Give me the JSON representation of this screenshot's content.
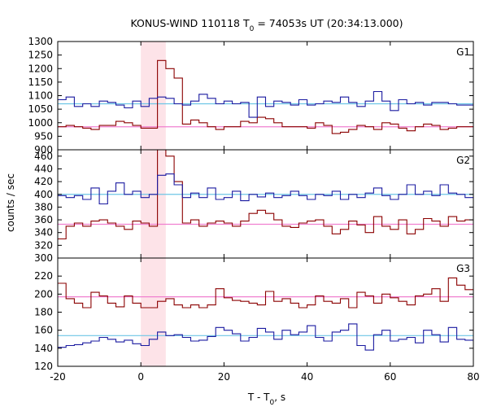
{
  "chart_data": {
    "type": "line",
    "title_parts": {
      "prefix": "KONUS-WIND 110118 T",
      "sub": "0",
      "suffix": " = 74053s UT (20:34:13.000)"
    },
    "xlabel_parts": {
      "prefix": "T - T",
      "sub": "0",
      "suffix": ", s"
    },
    "ylabel": "counts / sec",
    "xlim": [
      -20,
      80
    ],
    "x_ticks": [
      -20,
      0,
      20,
      40,
      60,
      80
    ],
    "highlight_interval": [
      0,
      6
    ],
    "colors": {
      "obs": "#1a1aa0",
      "obs_peak": "#8b0000",
      "bin2": "#8b0000",
      "bg_obs": "#6ec6e6",
      "bg_bin2": "#f080d0",
      "highlight": "#fde3e8"
    },
    "bin_width": 2,
    "panels": [
      {
        "label": "G1",
        "ylim": [
          900,
          1300
        ],
        "y_ticks": [
          900,
          950,
          1000,
          1050,
          1100,
          1150,
          1200,
          1250,
          1300
        ],
        "background": 1070,
        "background_2": 985,
        "counts": [
          1085,
          1095,
          1060,
          1070,
          1060,
          1080,
          1075,
          1065,
          1055,
          1080,
          1060,
          1090,
          1095,
          1090,
          1070,
          1065,
          1080,
          1105,
          1090,
          1070,
          1080,
          1070,
          1075,
          1020,
          1095,
          1060,
          1080,
          1075,
          1065,
          1085,
          1065,
          1070,
          1080,
          1075,
          1095,
          1075,
          1060,
          1080,
          1115,
          1080,
          1045,
          1085,
          1070,
          1075,
          1065,
          1075,
          1075,
          1070,
          1065,
          1065
        ],
        "bins_2": [
          985,
          990,
          985,
          980,
          975,
          990,
          990,
          1005,
          1000,
          990,
          980,
          980,
          1230,
          1200,
          1165,
          995,
          1010,
          1000,
          985,
          975,
          985,
          985,
          1005,
          1000,
          1020,
          1015,
          1000,
          985,
          985,
          985,
          980,
          1000,
          990,
          960,
          965,
          975,
          990,
          985,
          975,
          1000,
          995,
          980,
          970,
          985,
          995,
          990,
          975,
          980,
          985,
          985
        ]
      },
      {
        "label": "G2",
        "ylim": [
          300,
          470
        ],
        "y_ticks": [
          300,
          320,
          340,
          360,
          380,
          400,
          420,
          440,
          460
        ],
        "background": 400,
        "background_2": 353,
        "counts": [
          398,
          395,
          398,
          392,
          410,
          385,
          405,
          418,
          400,
          405,
          395,
          400,
          430,
          432,
          415,
          395,
          402,
          395,
          410,
          392,
          395,
          405,
          390,
          400,
          396,
          402,
          395,
          398,
          405,
          398,
          392,
          400,
          398,
          405,
          392,
          400,
          395,
          402,
          410,
          398,
          392,
          400,
          415,
          400,
          405,
          398,
          415,
          402,
          400,
          395
        ],
        "bins_2": [
          330,
          350,
          355,
          350,
          358,
          360,
          355,
          350,
          345,
          358,
          355,
          350,
          470,
          460,
          420,
          355,
          360,
          350,
          355,
          358,
          355,
          350,
          358,
          370,
          375,
          370,
          360,
          350,
          348,
          355,
          358,
          360,
          350,
          338,
          345,
          358,
          352,
          340,
          365,
          350,
          345,
          360,
          338,
          345,
          362,
          358,
          350,
          365,
          358,
          360
        ]
      },
      {
        "label": "G3",
        "ylim": [
          120,
          240
        ],
        "y_ticks": [
          120,
          140,
          160,
          180,
          200,
          220
        ],
        "background": 154,
        "background_2": 197,
        "counts": [
          141,
          143,
          144,
          146,
          148,
          152,
          150,
          147,
          149,
          145,
          143,
          150,
          158,
          154,
          155,
          152,
          148,
          149,
          153,
          163,
          160,
          156,
          148,
          152,
          162,
          158,
          150,
          160,
          155,
          158,
          165,
          152,
          148,
          158,
          160,
          167,
          143,
          138,
          155,
          160,
          148,
          150,
          152,
          146,
          160,
          155,
          147,
          163,
          150,
          149
        ],
        "bins_2": [
          212,
          195,
          190,
          185,
          202,
          198,
          190,
          186,
          198,
          190,
          185,
          185,
          192,
          195,
          188,
          185,
          188,
          185,
          188,
          206,
          196,
          193,
          192,
          190,
          188,
          203,
          192,
          195,
          190,
          185,
          188,
          198,
          192,
          190,
          195,
          185,
          202,
          198,
          190,
          200,
          196,
          192,
          188,
          198,
          200,
          206,
          192,
          218,
          210,
          205
        ]
      }
    ]
  }
}
